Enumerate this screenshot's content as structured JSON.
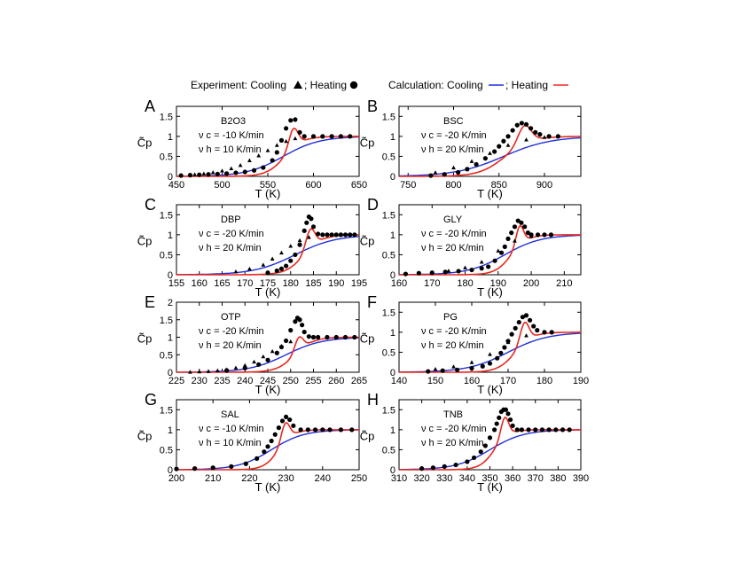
{
  "legend": {
    "experiment_text": "Experiment:  Cooling",
    "sep": "; Heating",
    "calculation_text": "Calculation:  Cooling",
    "calc_sep": "; Heating",
    "cooling_color": "#1f2fd6",
    "heating_color": "#e8281e"
  },
  "chart_data": [
    {
      "type": "line",
      "letter": "A",
      "name": "B2O3",
      "rate_c": "ν c = -10 K/min",
      "rate_h": "ν h = 10 K/min",
      "xlabel": "T (K)",
      "ylabel": "C̃p",
      "xlim": [
        450,
        650
      ],
      "ylim": [
        0,
        1.75
      ],
      "xticks": [
        "450",
        "500",
        "550",
        "600",
        "650"
      ],
      "yticks": [
        "0",
        "0.5",
        "1",
        "1.5"
      ],
      "Tg": 567,
      "width": 10,
      "peak": 0.48,
      "peak_T": 578,
      "peak_w": 7,
      "cool_w": 20,
      "series": [
        {
          "name": "Experiment heating",
          "x": [
            455,
            465,
            475,
            485,
            495,
            505,
            515,
            525,
            535,
            545,
            555,
            560,
            565,
            570,
            575,
            580,
            585,
            590,
            600,
            610,
            620,
            630,
            640
          ],
          "y": [
            0.02,
            0.03,
            0.04,
            0.05,
            0.06,
            0.07,
            0.09,
            0.11,
            0.15,
            0.22,
            0.4,
            0.6,
            0.9,
            1.2,
            1.4,
            1.42,
            1.1,
            1.0,
            1.0,
            1.0,
            1.0,
            1.0,
            1.0
          ]
        },
        {
          "name": "Experiment cooling",
          "x": [
            470,
            480,
            490,
            500,
            510,
            520,
            530,
            540,
            550,
            560,
            570,
            580
          ],
          "y": [
            0.05,
            0.07,
            0.1,
            0.14,
            0.2,
            0.28,
            0.4,
            0.52,
            0.65,
            0.78,
            0.88,
            0.95
          ]
        }
      ]
    },
    {
      "type": "line",
      "letter": "B",
      "name": "BSC",
      "rate_c": "ν c = -20 K/min",
      "rate_h": "ν h = 20 K/min",
      "xlabel": "T (K)",
      "ylabel": "C̃p",
      "xlim": [
        740,
        940
      ],
      "ylim": [
        0,
        1.75
      ],
      "xticks": [
        "750",
        "800",
        "850",
        "900"
      ],
      "yticks": [
        "0",
        "0.5",
        "1",
        "1.5"
      ],
      "Tg": 855,
      "width": 14,
      "peak": 0.45,
      "peak_T": 878,
      "peak_w": 10,
      "cool_w": 26,
      "series": [
        {
          "name": "Experiment heating",
          "x": [
            775,
            790,
            805,
            815,
            825,
            835,
            845,
            850,
            855,
            860,
            865,
            870,
            875,
            880,
            885,
            890,
            895,
            905,
            915
          ],
          "y": [
            0.02,
            0.05,
            0.1,
            0.18,
            0.3,
            0.45,
            0.62,
            0.75,
            0.88,
            1.0,
            1.15,
            1.28,
            1.33,
            1.3,
            1.2,
            1.1,
            1.05,
            1.0,
            1.0
          ]
        },
        {
          "name": "Experiment cooling",
          "x": [
            780,
            800,
            820,
            840,
            860,
            880,
            900
          ],
          "y": [
            0.1,
            0.22,
            0.38,
            0.58,
            0.78,
            0.92,
            0.98
          ]
        }
      ]
    },
    {
      "type": "line",
      "letter": "C",
      "name": "DBP",
      "rate_c": "ν c = -20 K/min",
      "rate_h": "ν h = 20 K/min",
      "xlabel": "T (K)",
      "ylabel": "C̃p",
      "xlim": [
        155,
        195
      ],
      "ylim": [
        0,
        1.75
      ],
      "xticks": [
        "155",
        "160",
        "165",
        "170",
        "175",
        "180",
        "185",
        "190",
        "195"
      ],
      "yticks": [
        "0",
        "0.5",
        "1",
        "1.5"
      ],
      "Tg": 181,
      "width": 2.0,
      "peak": 0.48,
      "peak_T": 184.3,
      "peak_w": 1.4,
      "cool_w": 4.5,
      "series": [
        {
          "name": "Experiment heating",
          "x": [
            175,
            177,
            178,
            179,
            180,
            181,
            182,
            183,
            183.5,
            184,
            184.5,
            185,
            186,
            187,
            188,
            189,
            190,
            191,
            192,
            193,
            194
          ],
          "y": [
            0.05,
            0.1,
            0.15,
            0.22,
            0.35,
            0.5,
            0.75,
            1.1,
            1.3,
            1.45,
            1.4,
            1.2,
            1.02,
            1.0,
            1.0,
            1.0,
            1.0,
            1.0,
            1.0,
            1.0,
            1.0
          ]
        },
        {
          "name": "Experiment cooling",
          "x": [
            168,
            171,
            174,
            176,
            178,
            180,
            182,
            184
          ],
          "y": [
            0.08,
            0.15,
            0.25,
            0.4,
            0.55,
            0.72,
            0.86,
            0.94
          ]
        }
      ]
    },
    {
      "type": "line",
      "letter": "D",
      "name": "GLY",
      "rate_c": "ν c = -20 K/min",
      "rate_h": "ν h = 20 K/min",
      "xlabel": "T (K)",
      "ylabel": "C̃p",
      "xlim": [
        160,
        215
      ],
      "ylim": [
        0,
        1.75
      ],
      "xticks": [
        "160",
        "170",
        "180",
        "190",
        "200",
        "210"
      ],
      "yticks": [
        "0",
        "0.5",
        "1",
        "1.5"
      ],
      "Tg": 192,
      "width": 2.4,
      "peak": 0.48,
      "peak_T": 196.5,
      "peak_w": 1.6,
      "cool_w": 5.5,
      "series": [
        {
          "name": "Experiment heating",
          "x": [
            162,
            166,
            170,
            174,
            178,
            182,
            185,
            187,
            189,
            191,
            192,
            193,
            194,
            195,
            196,
            197,
            198,
            199,
            200,
            202,
            204,
            206
          ],
          "y": [
            0.02,
            0.04,
            0.05,
            0.07,
            0.09,
            0.12,
            0.16,
            0.2,
            0.35,
            0.55,
            0.7,
            0.9,
            1.05,
            1.2,
            1.35,
            1.3,
            1.2,
            1.05,
            1.0,
            1.0,
            1.0,
            1.0
          ]
        },
        {
          "name": "Experiment cooling",
          "x": [
            170,
            175,
            180,
            185,
            190,
            195,
            200
          ],
          "y": [
            0.06,
            0.1,
            0.18,
            0.32,
            0.6,
            0.85,
            0.96
          ]
        }
      ]
    },
    {
      "type": "line",
      "letter": "E",
      "name": "OTP",
      "rate_c": "ν c = -20 K/min",
      "rate_h": "ν h = 20 K/min",
      "xlabel": "T (K)",
      "ylabel": "C̃p",
      "xlim": [
        225,
        265
      ],
      "ylim": [
        0,
        2
      ],
      "xticks": [
        "225",
        "230",
        "235",
        "240",
        "245",
        "250",
        "255",
        "260",
        "265"
      ],
      "yticks": [
        "0",
        "0.5",
        "1",
        "1.5",
        "2"
      ],
      "Tg": 249,
      "width": 2.0,
      "peak": 0.4,
      "peak_T": 251.8,
      "peak_w": 1.3,
      "cool_w": 4,
      "series": [
        {
          "name": "Experiment heating",
          "x": [
            236,
            240,
            243,
            245,
            247,
            248,
            249,
            250,
            251,
            251.5,
            252,
            252.5,
            253,
            254,
            255,
            256,
            258,
            260,
            262,
            264
          ],
          "y": [
            0.05,
            0.12,
            0.22,
            0.35,
            0.55,
            0.72,
            0.9,
            1.2,
            1.45,
            1.55,
            1.5,
            1.35,
            1.15,
            1.02,
            1.0,
            1.0,
            1.0,
            1.0,
            1.0,
            1.0
          ]
        },
        {
          "name": "Experiment cooling",
          "x": [
            228,
            230,
            232,
            234,
            236,
            238,
            240,
            242,
            244,
            246,
            248,
            250
          ],
          "y": [
            0.01,
            0.02,
            0.03,
            0.05,
            0.08,
            0.13,
            0.2,
            0.3,
            0.45,
            0.6,
            0.75,
            0.88
          ]
        }
      ]
    },
    {
      "type": "line",
      "letter": "F",
      "name": "PG",
      "rate_c": "ν c = -20 K/min",
      "rate_h": "ν h = 20 K/min",
      "xlabel": "T (K)",
      "ylabel": "C̃p",
      "xlim": [
        140,
        190
      ],
      "ylim": [
        0,
        1.75
      ],
      "xticks": [
        "140",
        "150",
        "160",
        "170",
        "180",
        "190"
      ],
      "yticks": [
        "0",
        "0.5",
        "1",
        "1.5"
      ],
      "Tg": 170,
      "width": 2.4,
      "peak": 0.5,
      "peak_T": 174.5,
      "peak_w": 1.7,
      "cool_w": 5.5,
      "series": [
        {
          "name": "Experiment heating",
          "x": [
            148,
            152,
            156,
            160,
            163,
            165,
            167,
            168,
            169,
            170,
            171,
            172,
            173,
            174,
            175,
            176,
            177,
            178,
            180,
            182
          ],
          "y": [
            0.02,
            0.04,
            0.06,
            0.1,
            0.15,
            0.22,
            0.35,
            0.48,
            0.62,
            0.78,
            0.95,
            1.1,
            1.25,
            1.38,
            1.42,
            1.3,
            1.15,
            1.05,
            1.0,
            1.0
          ]
        },
        {
          "name": "Experiment cooling",
          "x": [
            150,
            155,
            160,
            165,
            170,
            175
          ],
          "y": [
            0.08,
            0.14,
            0.25,
            0.45,
            0.75,
            0.92
          ]
        }
      ]
    },
    {
      "type": "line",
      "letter": "G",
      "name": "SAL",
      "rate_c": "ν c = -10 K/min",
      "rate_h": "ν h = 10 K/min",
      "xlabel": "T (K)",
      "ylabel": "C̃p",
      "xlim": [
        200,
        250
      ],
      "ylim": [
        0,
        1.75
      ],
      "xticks": [
        "200",
        "210",
        "220",
        "230",
        "240",
        "250"
      ],
      "yticks": [
        "0",
        "0.5",
        "1",
        "1.5"
      ],
      "Tg": 226,
      "width": 2.0,
      "peak": 0.45,
      "peak_T": 229.8,
      "peak_w": 1.6,
      "cool_w": 4.5,
      "series": [
        {
          "name": "Experiment heating",
          "x": [
            200,
            205,
            210,
            215,
            219,
            222,
            224,
            225,
            226,
            227,
            228,
            229,
            230,
            231,
            232,
            234,
            236,
            238,
            240,
            242,
            245,
            248
          ],
          "y": [
            0.02,
            0.03,
            0.05,
            0.08,
            0.15,
            0.28,
            0.45,
            0.58,
            0.72,
            0.88,
            1.05,
            1.22,
            1.32,
            1.25,
            1.1,
            1.0,
            1.0,
            1.0,
            1.0,
            1.0,
            1.0,
            1.0
          ]
        }
      ]
    },
    {
      "type": "line",
      "letter": "H",
      "name": "TNB",
      "rate_c": "ν c = -20 K/min",
      "rate_h": "ν h = 20 K/min",
      "xlabel": "T (K)",
      "ylabel": "C̃p",
      "xlim": [
        310,
        390
      ],
      "ylim": [
        0,
        1.75
      ],
      "xticks": [
        "310",
        "320",
        "330",
        "340",
        "350",
        "360",
        "370",
        "380",
        "390"
      ],
      "yticks": [
        "0",
        "0.5",
        "1",
        "1.5"
      ],
      "Tg": 350,
      "width": 3.2,
      "peak": 0.5,
      "peak_T": 356.5,
      "peak_w": 2.4,
      "cool_w": 7.5,
      "series": [
        {
          "name": "Experiment heating",
          "x": [
            320,
            325,
            330,
            335,
            340,
            343,
            346,
            348,
            350,
            352,
            353,
            354,
            355,
            356,
            357,
            358,
            359,
            360,
            362,
            364,
            367,
            370,
            373,
            376,
            379,
            382,
            385
          ],
          "y": [
            0.03,
            0.05,
            0.08,
            0.12,
            0.2,
            0.3,
            0.45,
            0.6,
            0.8,
            1.0,
            1.15,
            1.3,
            1.45,
            1.5,
            1.5,
            1.4,
            1.25,
            1.1,
            1.0,
            1.0,
            1.0,
            1.0,
            1.0,
            1.0,
            1.0,
            1.0,
            1.0
          ]
        }
      ]
    }
  ]
}
